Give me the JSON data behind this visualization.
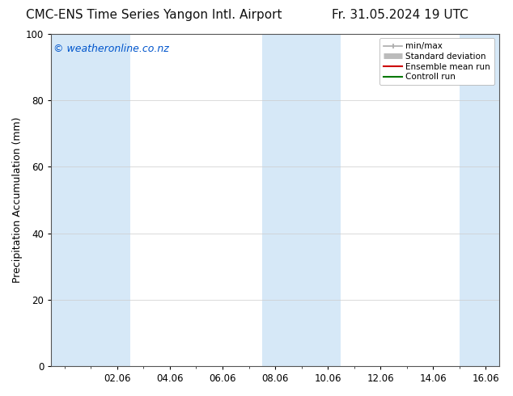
{
  "title_left": "CMC-ENS Time Series Yangon Intl. Airport",
  "title_right": "Fr. 31.05.2024 19 UTC",
  "ylabel": "Precipitation Accumulation (mm)",
  "watermark": "© weatheronline.co.nz",
  "watermark_color": "#0055cc",
  "ylim": [
    0,
    100
  ],
  "yticks": [
    0,
    20,
    40,
    60,
    80,
    100
  ],
  "xlim": [
    -0.5,
    16.5
  ],
  "xtick_labels": [
    "02.06",
    "04.06",
    "06.06",
    "08.06",
    "10.06",
    "12.06",
    "14.06",
    "16.06"
  ],
  "xtick_positions": [
    2,
    4,
    6,
    8,
    10,
    12,
    14,
    16
  ],
  "shaded_bands": [
    {
      "x_start": -0.5,
      "x_end": 2.5
    },
    {
      "x_start": 7.5,
      "x_end": 10.5
    },
    {
      "x_start": 15.0,
      "x_end": 16.5
    }
  ],
  "band_color": "#d6e8f7",
  "background_color": "#ffffff",
  "plot_bg_color": "#ffffff",
  "legend_items": [
    {
      "label": "min/max",
      "color": "#aaaaaa",
      "lw": 1.2,
      "style": "minmax"
    },
    {
      "label": "Standard deviation",
      "color": "#bbbbbb",
      "lw": 5,
      "style": "std"
    },
    {
      "label": "Ensemble mean run",
      "color": "#cc0000",
      "lw": 1.5,
      "style": "line"
    },
    {
      "label": "Controll run",
      "color": "#007700",
      "lw": 1.5,
      "style": "line"
    }
  ],
  "grid_color": "#cccccc",
  "title_fontsize": 11,
  "axis_fontsize": 9,
  "tick_fontsize": 8.5,
  "watermark_fontsize": 9
}
